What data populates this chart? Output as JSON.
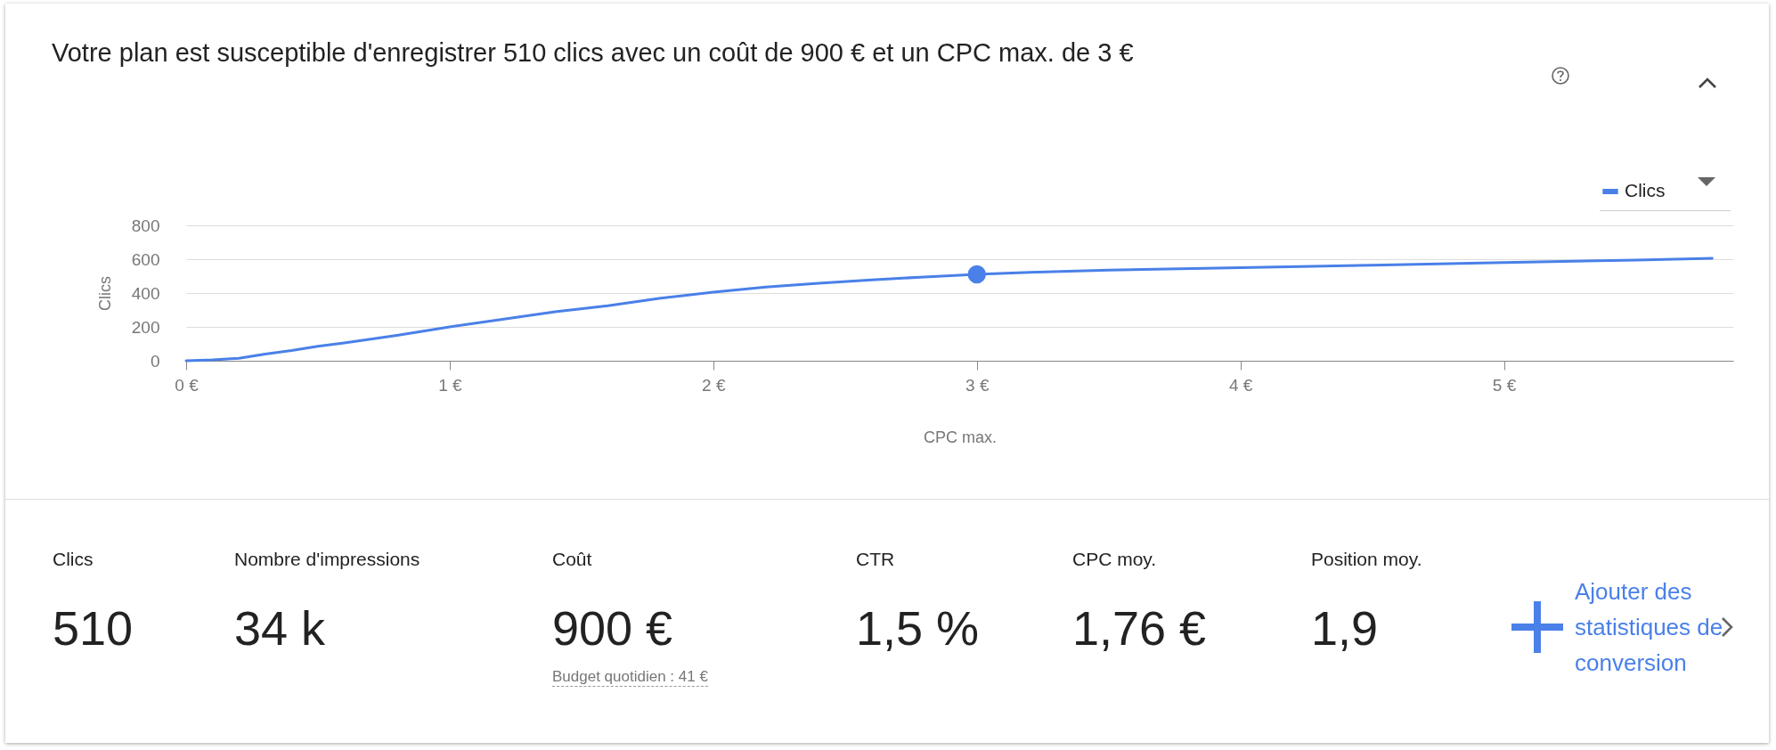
{
  "chart_data": [
    {
      "type": "line",
      "title": "Votre plan est susceptible d'enregistrer 510 clics avec un coût de 900 € et un CPC max. de 3 €",
      "xlabel": "CPC max.",
      "ylabel": "Clics",
      "grid": "y",
      "legend": "top right",
      "xlim": [
        0,
        5.87
      ],
      "ylim": [
        0,
        800
      ],
      "xticks": [
        {
          "value": 0,
          "label": "0 €"
        },
        {
          "value": 1,
          "label": "1 €"
        },
        {
          "value": 2,
          "label": "2 €"
        },
        {
          "value": 3,
          "label": "3 €"
        },
        {
          "value": 4,
          "label": "4 €"
        },
        {
          "value": 5,
          "label": "5 €"
        }
      ],
      "yticks": [
        0,
        200,
        400,
        600,
        800
      ],
      "series": [
        {
          "name": "Clics",
          "color": "#4a80e8",
          "x": [
            0,
            0.1,
            0.2,
            0.3,
            0.4,
            0.5,
            0.6,
            0.8,
            1.0,
            1.2,
            1.4,
            1.6,
            1.8,
            2.0,
            2.2,
            2.4,
            2.6,
            2.8,
            3.0,
            3.2,
            3.5,
            4.0,
            4.5,
            5.0,
            5.5,
            5.79
          ],
          "values": [
            0,
            5,
            15,
            40,
            60,
            85,
            105,
            150,
            200,
            245,
            290,
            325,
            370,
            405,
            435,
            458,
            478,
            495,
            510,
            522,
            535,
            550,
            565,
            580,
            595,
            605
          ]
        },
        {
          "type": "scatter",
          "color": "#4a80e8",
          "x": [
            3
          ],
          "values": [
            510
          ]
        }
      ]
    },
    {
      "type": "other",
      "categories": [
        "Clics",
        "Nombre d'impressions",
        "Coût",
        "CTR",
        "CPC moy.",
        "Position moy."
      ],
      "value_labels": [
        "510",
        "34 k",
        "900 €",
        "1,5 %",
        "1,76 €",
        "1,9"
      ],
      "annotations": [
        "Budget quotidien : 41 €",
        "Ajouter des statistiques de conversion"
      ]
    }
  ]
}
